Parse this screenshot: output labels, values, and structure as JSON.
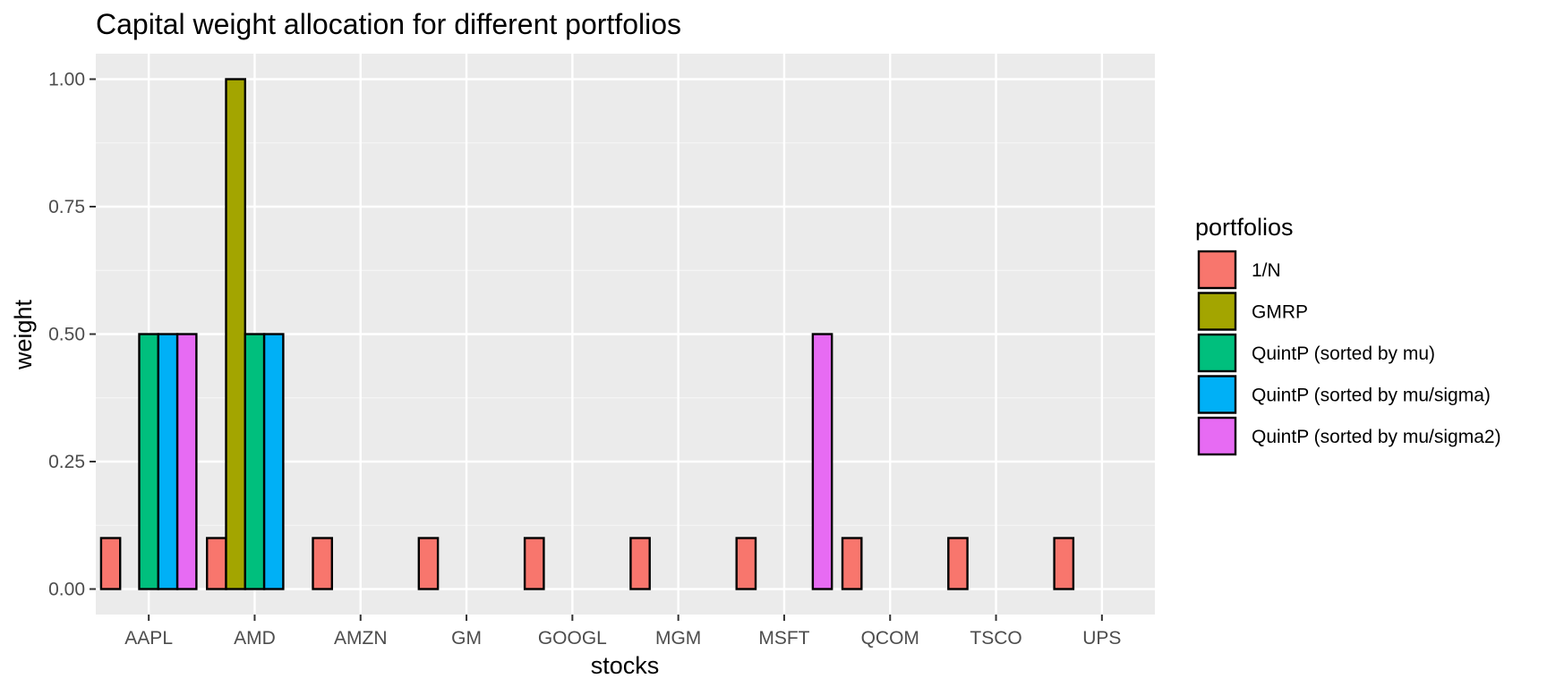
{
  "chart_data": {
    "type": "bar",
    "title": "Capital weight allocation for different portfolios",
    "xlabel": "stocks",
    "ylabel": "weight",
    "categories": [
      "AAPL",
      "AMD",
      "AMZN",
      "GM",
      "GOOGL",
      "MGM",
      "MSFT",
      "QCOM",
      "TSCO",
      "UPS"
    ],
    "ylim": [
      -0.05,
      1.05
    ],
    "yticks": [
      0.0,
      0.25,
      0.5,
      0.75,
      1.0
    ],
    "ytick_labels": [
      "0.00",
      "0.25",
      "0.50",
      "0.75",
      "1.00"
    ],
    "grid": true,
    "legend_title": "portfolios",
    "legend_position": "right",
    "series": [
      {
        "name": "1/N",
        "color": "#F8766D",
        "values": [
          0.1,
          0.1,
          0.1,
          0.1,
          0.1,
          0.1,
          0.1,
          0.1,
          0.1,
          0.1
        ]
      },
      {
        "name": "GMRP",
        "color": "#A3A500",
        "values": [
          0,
          1.0,
          0,
          0,
          0,
          0,
          0,
          0,
          0,
          0
        ]
      },
      {
        "name": "QuintP (sorted by mu)",
        "color": "#00BF7D",
        "values": [
          0.5,
          0.5,
          0,
          0,
          0,
          0,
          0,
          0,
          0,
          0
        ]
      },
      {
        "name": "QuintP (sorted by mu/sigma)",
        "color": "#00B0F6",
        "values": [
          0.5,
          0.5,
          0,
          0,
          0,
          0,
          0,
          0,
          0,
          0
        ]
      },
      {
        "name": "QuintP (sorted by mu/sigma2)",
        "color": "#E76BF3",
        "values": [
          0.5,
          0,
          0,
          0,
          0,
          0,
          0.5,
          0,
          0,
          0
        ]
      }
    ]
  },
  "colors": {
    "panel_background": "#EBEBEB",
    "grid_major": "#FFFFFF",
    "grid_minor": "#F5F5F5",
    "bar_outline": "#000000"
  }
}
